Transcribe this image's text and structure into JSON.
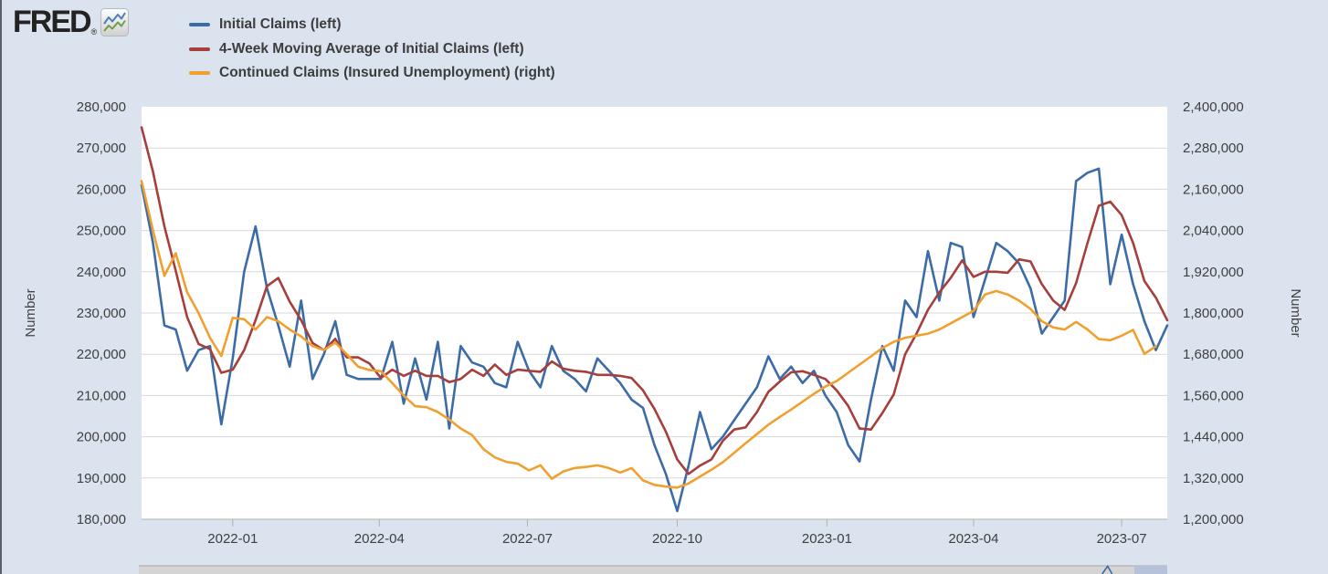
{
  "header": {
    "logo_text": "FRED",
    "registered_mark": "®"
  },
  "colors": {
    "background": "#dbe3ee",
    "plot_background": "#ffffff",
    "grid": "#d8d8d8",
    "axis_line": "#b0b0b0",
    "tick_text": "#3f3f3f",
    "legend_text": "#3d3d3d",
    "logo_text": "#232323"
  },
  "chart_data": {
    "type": "line",
    "frequency": "weekly",
    "start_date": "2021-11-06",
    "grid": "horizontal",
    "legend_position": "top-left",
    "x_ticks": [
      "2022-01",
      "2022-04",
      "2022-07",
      "2022-10",
      "2023-01",
      "2023-04",
      "2023-07"
    ],
    "left_axis": {
      "label": "Number",
      "min": 180000,
      "max": 280000,
      "tick_step": 10000,
      "tick_labels": [
        "280,000",
        "270,000",
        "260,000",
        "250,000",
        "240,000",
        "230,000",
        "220,000",
        "210,000",
        "200,000",
        "190,000",
        "180,000"
      ]
    },
    "right_axis": {
      "label": "Number",
      "min": 1200000,
      "max": 2400000,
      "tick_step": 120000,
      "tick_labels": [
        "2,400,000",
        "2,280,000",
        "2,160,000",
        "2,040,000",
        "1,920,000",
        "1,800,000",
        "1,680,000",
        "1,560,000",
        "1,440,000",
        "1,320,000",
        "1,200,000"
      ]
    },
    "series": [
      {
        "name": "Initial Claims (left)",
        "color": "#3c6ca8",
        "axis": "left",
        "values": [
          261000,
          247000,
          227000,
          226000,
          216000,
          221000,
          222000,
          203000,
          219000,
          240000,
          251000,
          236000,
          227000,
          217000,
          233000,
          214000,
          220000,
          228000,
          215000,
          214000,
          214000,
          214000,
          223000,
          208000,
          219000,
          209000,
          223000,
          202000,
          222000,
          218000,
          217000,
          213000,
          212000,
          223000,
          216000,
          212000,
          222000,
          216000,
          214000,
          211000,
          219000,
          216000,
          213000,
          209000,
          207000,
          198000,
          191000,
          182000,
          193000,
          206000,
          197000,
          200000,
          204000,
          208000,
          212000,
          219500,
          214000,
          217000,
          213000,
          216000,
          210000,
          206000,
          198000,
          194000,
          209000,
          222000,
          216000,
          233000,
          229000,
          245000,
          233000,
          247000,
          246000,
          229000,
          238000,
          247000,
          245000,
          242000,
          236000,
          225000,
          229000,
          233000,
          262000,
          264000,
          265000,
          237000,
          249000,
          237000,
          228000,
          221000,
          227000
        ]
      },
      {
        "name": "4-Week Moving Average of Initial Claims (left)",
        "color": "#a63f3c",
        "axis": "left",
        "derived": "4-week moving average of Initial Claims",
        "values": [
          275000,
          264250,
          251000,
          240250,
          229000,
          222500,
          221250,
          215500,
          216250,
          221000,
          228250,
          236500,
          238500,
          232750,
          228250,
          222750,
          221000,
          223750,
          219250,
          219250,
          217750,
          214250,
          216250,
          214750,
          216000,
          214750,
          214750,
          213250,
          214000,
          216250,
          214750,
          217500,
          215000,
          216250,
          216000,
          215750,
          218250,
          216500,
          216000,
          215750,
          215000,
          215000,
          214750,
          214250,
          211250,
          206750,
          201250,
          194500,
          191000,
          193000,
          194500,
          199000,
          201750,
          202250,
          206000,
          210875,
          213375,
          215625,
          215875,
          215000,
          214000,
          211250,
          207500,
          202000,
          201750,
          205750,
          210250,
          220000,
          225000,
          230750,
          235000,
          238500,
          242750,
          238750,
          240000,
          240000,
          239750,
          243000,
          242500,
          237000,
          233000,
          230750,
          237250,
          247000,
          256000,
          257000,
          253750,
          247000,
          237750,
          233750,
          228250
        ]
      },
      {
        "name": "Continued Claims (Insured Unemployment) (right)",
        "color": "#f0a02f",
        "axis": "right",
        "values": [
          2184000,
          2040000,
          1908000,
          1974000,
          1860000,
          1800000,
          1728000,
          1675000,
          1786000,
          1782000,
          1752000,
          1788000,
          1776000,
          1752000,
          1732000,
          1704000,
          1692000,
          1714000,
          1680000,
          1644000,
          1634000,
          1631000,
          1596000,
          1560000,
          1529000,
          1526000,
          1512000,
          1490000,
          1464000,
          1445000,
          1404000,
          1380000,
          1367000,
          1362000,
          1342000,
          1357000,
          1318000,
          1339000,
          1349000,
          1352000,
          1357000,
          1349000,
          1336000,
          1349000,
          1313000,
          1300000,
          1295000,
          1292000,
          1304000,
          1324000,
          1344000,
          1366000,
          1393000,
          1421000,
          1448000,
          1475000,
          1498000,
          1519000,
          1542000,
          1565000,
          1586000,
          1602000,
          1626000,
          1650000,
          1674000,
          1698000,
          1716000,
          1728000,
          1734000,
          1740000,
          1752000,
          1770000,
          1788000,
          1806000,
          1854000,
          1864000,
          1854000,
          1836000,
          1812000,
          1776000,
          1758000,
          1752000,
          1774000,
          1752000,
          1724000,
          1721000,
          1734000,
          1751000,
          1681000,
          1703000
        ]
      }
    ]
  },
  "range_slider": {
    "track_color": "#d4d4d4",
    "track_border_color": "#a8a8a8",
    "selection_color": "#b5c2d9",
    "spike_color": "#3c6ca8",
    "spike_position": 0.942,
    "selection_start": 0.968,
    "selection_end": 1.0
  }
}
